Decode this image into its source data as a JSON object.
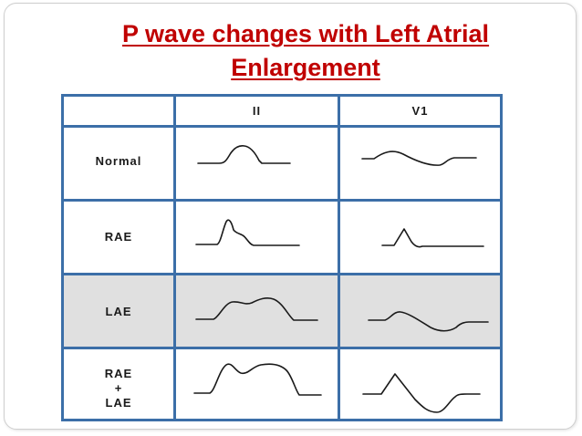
{
  "title": {
    "line1": "P wave changes with Left Atrial",
    "line2": "Enlargement"
  },
  "table": {
    "columns": [
      "",
      "II",
      "V1"
    ],
    "rows": [
      {
        "label": "Normal",
        "highlighted": false
      },
      {
        "label": "RAE",
        "highlighted": false
      },
      {
        "label": "LAE",
        "highlighted": true
      },
      {
        "label_lines": [
          "RAE",
          "+",
          "LAE"
        ],
        "highlighted": false
      }
    ]
  },
  "colors": {
    "title": "#c00000",
    "grid": "#3c6fa8",
    "highlight_row": "#e0e0e0"
  }
}
